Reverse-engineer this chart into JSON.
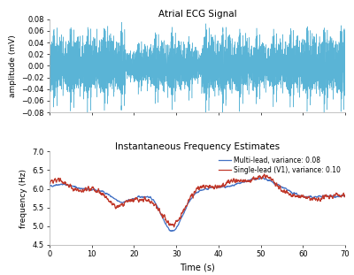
{
  "title_ecg": "Atrial ECG Signal",
  "title_freq": "Instantaneous Frequency Estimates",
  "xlabel": "Time (s)",
  "ylabel_ecg": "amplitude (mV)",
  "ylabel_freq": "frequency (Hz)",
  "xlim": [
    0,
    70
  ],
  "ylim_ecg": [
    -0.08,
    0.08
  ],
  "ylim_freq": [
    4.5,
    7
  ],
  "xticks": [
    0,
    10,
    20,
    30,
    40,
    50,
    60,
    70
  ],
  "yticks_ecg": [
    -0.08,
    -0.06,
    -0.04,
    -0.02,
    0,
    0.02,
    0.04,
    0.06,
    0.08
  ],
  "yticks_freq": [
    4.5,
    5.0,
    5.5,
    6.0,
    6.5,
    7.0
  ],
  "ecg_color": "#5ab4d6",
  "multilead_color": "#4472c4",
  "singlelead_color": "#c0392b",
  "legend_multilead": "Multi-lead, variance: 0.08",
  "legend_singlelead": "Single-lead (V1), variance: 0.10",
  "seed": 42,
  "n_ecg": 14000,
  "n_freq": 1400,
  "bg_color": "#ffffff"
}
